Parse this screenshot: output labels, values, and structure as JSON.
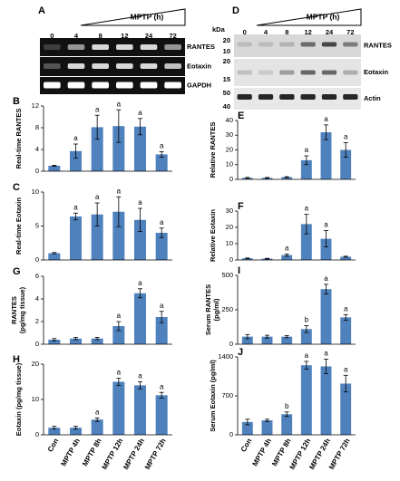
{
  "blot_a": {
    "panel": "A",
    "treatment": "MPTP (h)",
    "lanes": [
      "0",
      "4",
      "8",
      "12",
      "24",
      "72"
    ],
    "rows": [
      "RANTES",
      "Eotaxin",
      "GAPDH"
    ]
  },
  "blot_d": {
    "panel": "D",
    "treatment": "MPTP (h)",
    "lanes": [
      "0",
      "4",
      "8",
      "12",
      "24",
      "72"
    ],
    "rows": [
      "RANTES",
      "Eotaxin",
      "Actin"
    ],
    "kda_unit": "kDa",
    "kda": [
      "20",
      "10",
      "20",
      "15",
      "50",
      "40"
    ]
  },
  "chart_data": [
    {
      "panel": "B",
      "type": "bar",
      "y_label": [
        "Real-time RANTES"
      ],
      "categories": [
        null,
        null,
        null,
        null,
        null,
        null
      ],
      "values": [
        1,
        3.7,
        8.1,
        8.3,
        8.2,
        3.1
      ],
      "errors": [
        0.1,
        1.3,
        2.2,
        3,
        1.5,
        0.5
      ],
      "annotations": [
        null,
        "a",
        "a",
        "a",
        "a",
        "a"
      ],
      "color": "#4f81bd",
      "ylim": [
        0,
        12
      ],
      "yticks": [
        0,
        4,
        8,
        12
      ]
    },
    {
      "panel": "C",
      "type": "bar",
      "y_label": [
        "Real-time Eotaxin"
      ],
      "categories": [
        null,
        null,
        null,
        null,
        null,
        null
      ],
      "values": [
        1,
        6.4,
        6.7,
        7.1,
        5.9,
        4.0
      ],
      "errors": [
        0.1,
        0.5,
        1.7,
        2.2,
        1.7,
        0.7
      ],
      "annotations": [
        null,
        "a",
        "a",
        "a",
        "a",
        "a"
      ],
      "color": "#4f81bd",
      "ylim": [
        0,
        10
      ],
      "yticks": [
        0,
        5,
        10
      ]
    },
    {
      "panel": "G",
      "type": "bar",
      "y_label": [
        "RANTES",
        "(pg/mg tissue)"
      ],
      "categories": [
        null,
        null,
        null,
        null,
        null,
        null
      ],
      "values": [
        0.4,
        0.5,
        0.5,
        1.6,
        4.5,
        2.4
      ],
      "errors": [
        0.1,
        0.1,
        0.1,
        0.4,
        0.4,
        0.5
      ],
      "annotations": [
        null,
        null,
        null,
        "a",
        "a",
        "a"
      ],
      "color": "#4f81bd",
      "ylim": [
        0,
        6
      ],
      "yticks": [
        0,
        2,
        4,
        6
      ]
    },
    {
      "panel": "H",
      "type": "bar",
      "y_label": [
        "Eotaxin (pg/mg tissue)"
      ],
      "categories": [
        "Con",
        "MPTP 4h",
        "MPTP 8h",
        "MPTP 12h",
        "MPTP 24h",
        "MPTP 72h"
      ],
      "values": [
        2,
        2,
        4.3,
        15,
        14,
        11.2
      ],
      "errors": [
        0.4,
        0.4,
        0.5,
        1,
        1,
        0.8
      ],
      "annotations": [
        null,
        null,
        "a",
        "a",
        "a",
        "a"
      ],
      "color": "#4f81bd",
      "ylim": [
        0,
        20
      ],
      "yticks": [
        0,
        10,
        20
      ]
    },
    {
      "panel": "E",
      "type": "bar",
      "y_label": [
        "Relative RANTES"
      ],
      "categories": [
        null,
        null,
        null,
        null,
        null,
        null
      ],
      "values": [
        1,
        1,
        1.5,
        13,
        32,
        20
      ],
      "errors": [
        0.3,
        0.3,
        0.3,
        3,
        5,
        5
      ],
      "annotations": [
        null,
        null,
        null,
        "a",
        "a",
        "a"
      ],
      "color": "#4f81bd",
      "ylim": [
        0,
        40
      ],
      "yticks": [
        0,
        10,
        20,
        30,
        40
      ]
    },
    {
      "panel": "F",
      "type": "bar",
      "y_label": [
        "Relative Eotaxin"
      ],
      "categories": [
        null,
        null,
        null,
        null,
        null,
        null
      ],
      "values": [
        1,
        0.8,
        3,
        22,
        13,
        2
      ],
      "errors": [
        0.2,
        0.2,
        0.7,
        6,
        5,
        0.3
      ],
      "annotations": [
        null,
        null,
        "a",
        "a",
        "a",
        null
      ],
      "color": "#4f81bd",
      "ylim": [
        0,
        30
      ],
      "yticks": [
        0,
        10,
        20,
        30
      ]
    },
    {
      "panel": "I",
      "type": "bar",
      "y_label": [
        "Serum RANTES",
        "(pg/ml)"
      ],
      "categories": [
        null,
        null,
        null,
        null,
        null,
        null
      ],
      "values": [
        55,
        55,
        55,
        110,
        400,
        195
      ],
      "errors": [
        15,
        10,
        8,
        25,
        35,
        20
      ],
      "annotations": [
        null,
        null,
        null,
        "b",
        "a",
        "a"
      ],
      "color": "#4f81bd",
      "ylim": [
        0,
        500
      ],
      "yticks": [
        0,
        250,
        500
      ]
    },
    {
      "panel": "J",
      "type": "bar",
      "y_label": [
        "Serum Eotaxin (pg/ml)"
      ],
      "categories": [
        "Con",
        "MPTP 4h",
        "MPTP 8h",
        "MPTP 12h",
        "MPTP 24h",
        "MPTP 72h"
      ],
      "values": [
        230,
        260,
        370,
        1250,
        1230,
        920
      ],
      "errors": [
        50,
        20,
        40,
        70,
        130,
        150
      ],
      "annotations": [
        null,
        null,
        "b",
        "a",
        "a",
        "a"
      ],
      "color": "#4f81bd",
      "ylim": [
        0,
        1400
      ],
      "yticks": [
        0,
        700,
        1400
      ]
    }
  ]
}
